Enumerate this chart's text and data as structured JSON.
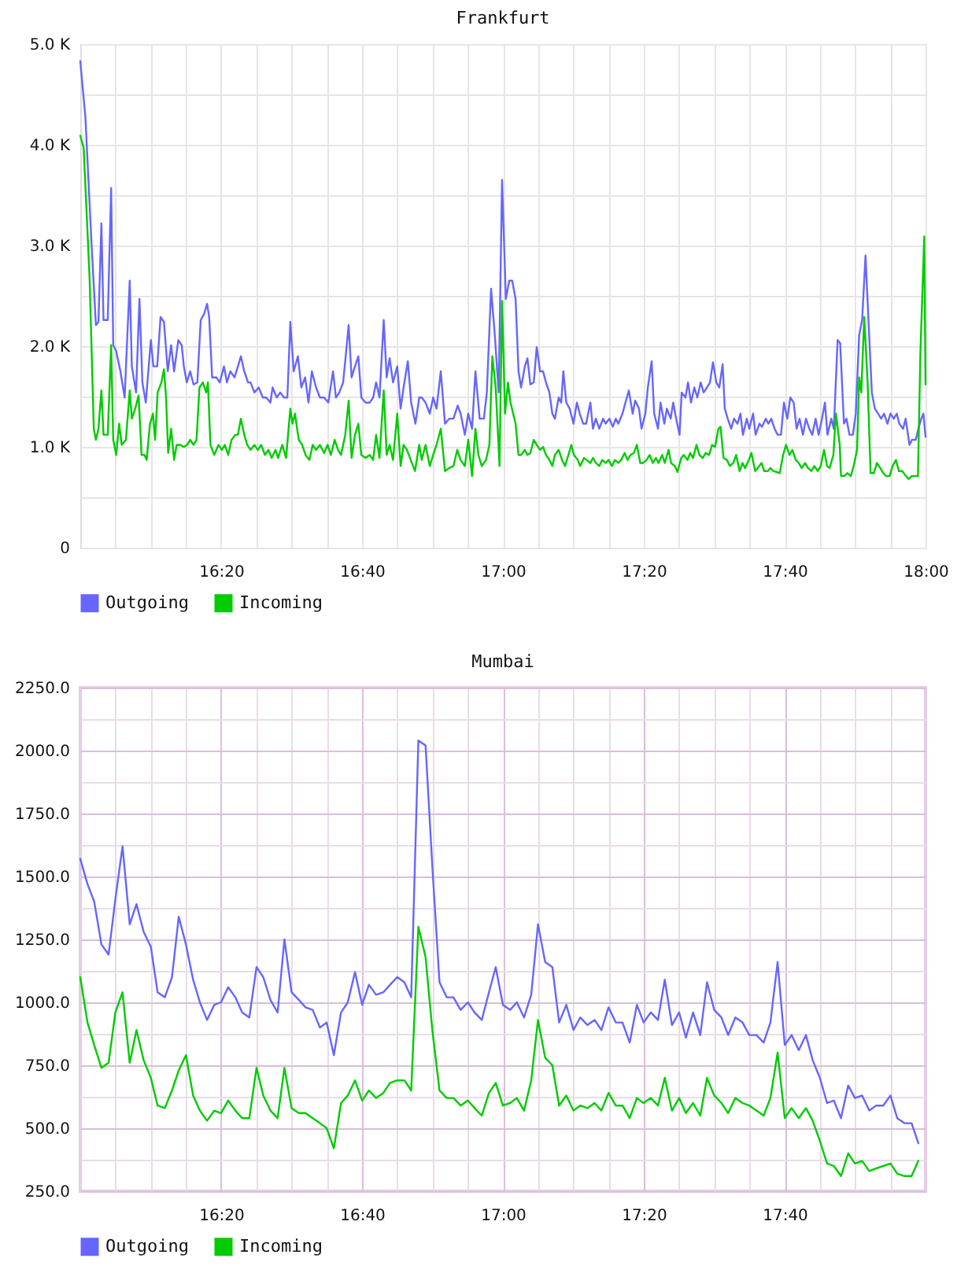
{
  "chart_data": [
    {
      "type": "line",
      "title": "Frankfurt",
      "xlim": [
        16,
        18
      ],
      "xticks": [
        {
          "value": 16.0833,
          "label": null
        },
        {
          "value": 16.1667,
          "label": null
        },
        {
          "value": 16.25,
          "label": null
        },
        {
          "value": 16.3333,
          "label": "16:20"
        },
        {
          "value": 16.4167,
          "label": null
        },
        {
          "value": 16.5,
          "label": null
        },
        {
          "value": 16.5833,
          "label": null
        },
        {
          "value": 16.6667,
          "label": "16:40"
        },
        {
          "value": 16.75,
          "label": null
        },
        {
          "value": 16.8333,
          "label": null
        },
        {
          "value": 16.9167,
          "label": null
        },
        {
          "value": 17,
          "label": "17:00"
        },
        {
          "value": 17.0833,
          "label": null
        },
        {
          "value": 17.1667,
          "label": null
        },
        {
          "value": 17.25,
          "label": null
        },
        {
          "value": 17.3333,
          "label": "17:20"
        },
        {
          "value": 17.4167,
          "label": null
        },
        {
          "value": 17.5,
          "label": null
        },
        {
          "value": 17.5833,
          "label": null
        },
        {
          "value": 17.6667,
          "label": "17:40"
        },
        {
          "value": 17.75,
          "label": null
        },
        {
          "value": 17.8333,
          "label": null
        },
        {
          "value": 17.9167,
          "label": null
        },
        {
          "value": 18,
          "label": "18:00"
        }
      ],
      "ylim": [
        0,
        5000
      ],
      "yticks": [
        0,
        {
          "value": 500,
          "label": null
        },
        {
          "value": 1000,
          "label": "1.0 K"
        },
        {
          "value": 1500,
          "label": null
        },
        {
          "value": 2000,
          "label": "2.0 K"
        },
        {
          "value": 2500,
          "label": null
        },
        {
          "value": 3000,
          "label": "3.0 K"
        },
        {
          "value": 3500,
          "label": null
        },
        {
          "value": 4000,
          "label": "4.0 K"
        },
        {
          "value": 4500,
          "label": null
        },
        {
          "value": 5000,
          "label": "5.0 K"
        }
      ],
      "grid": true,
      "legend": "bottom",
      "series": [
        {
          "name": "Outgoing",
          "color": "#6666ff",
          "x": [
            16.0,
            16.012,
            16.027,
            16.037,
            16.043,
            16.05,
            16.055,
            16.065,
            16.073,
            16.078,
            16.085,
            16.095,
            16.105,
            16.117,
            16.122,
            16.132,
            16.14,
            16.147,
            16.155,
            16.167,
            16.173,
            16.182,
            16.19,
            16.198,
            16.207,
            16.215,
            16.222,
            16.232,
            16.24,
            16.245,
            16.252,
            16.26,
            16.268,
            16.277,
            16.285,
            16.293,
            16.3,
            16.305,
            16.312,
            16.322,
            16.33,
            16.34,
            16.347,
            16.355,
            16.365,
            16.373,
            16.38,
            16.388,
            16.397,
            16.403,
            16.412,
            16.422,
            16.432,
            16.44,
            16.45,
            16.455,
            16.465,
            16.473,
            16.482,
            16.49,
            16.497,
            16.505,
            16.515,
            16.523,
            16.532,
            16.54,
            16.548,
            16.558,
            16.567,
            16.577,
            16.587,
            16.598,
            16.605,
            16.613,
            16.622,
            16.628,
            16.635,
            16.642,
            16.65,
            16.658,
            16.665,
            16.675,
            16.685,
            16.693,
            16.7,
            16.708,
            16.718,
            16.725,
            16.732,
            16.74,
            16.75,
            16.758,
            16.765,
            16.775,
            16.783,
            16.793,
            16.802,
            16.808,
            16.817,
            16.827,
            16.835,
            16.843,
            16.853,
            16.863,
            16.873,
            16.883,
            16.893,
            16.9,
            16.91,
            16.918,
            16.927,
            16.935,
            16.945,
            16.955,
            16.962,
            16.972,
            16.98,
            16.99,
            16.998,
            17.007,
            17.015,
            17.022,
            17.03,
            17.037,
            17.043,
            17.052,
            17.058,
            17.065,
            17.073,
            17.08,
            17.088,
            17.095,
            17.102,
            17.11,
            17.117,
            17.123,
            17.132,
            17.138,
            17.143,
            17.15,
            17.158,
            17.167,
            17.175,
            17.182,
            17.19,
            17.197,
            17.207,
            17.213,
            17.22,
            17.228,
            17.237,
            17.243,
            17.252,
            17.26,
            17.267,
            17.273,
            17.283,
            17.29,
            17.298,
            17.307,
            17.313,
            17.322,
            17.328,
            17.337,
            17.343,
            17.352,
            17.358,
            17.367,
            17.373,
            17.382,
            17.388,
            17.397,
            17.403,
            17.41,
            17.418,
            17.423,
            17.432,
            17.438,
            17.445,
            17.453,
            17.46,
            17.468,
            17.475,
            17.483,
            17.49,
            17.497,
            17.505,
            17.512,
            17.52,
            17.525,
            17.532,
            17.54,
            17.547,
            17.555,
            17.562,
            17.568,
            17.577,
            17.583,
            17.592,
            17.598,
            17.607,
            17.613,
            17.622,
            17.628,
            17.635,
            17.643,
            17.65,
            17.658,
            17.665,
            17.673,
            17.68,
            17.688,
            17.695,
            17.702,
            17.71,
            17.717,
            17.725,
            17.732,
            17.74,
            17.747,
            17.755,
            17.762,
            17.768,
            17.777,
            17.783,
            17.792,
            17.798,
            17.807,
            17.813,
            17.82,
            17.828,
            17.835,
            17.843,
            17.85,
            17.858,
            17.865,
            17.873,
            17.88,
            17.888,
            17.895,
            17.902,
            17.91,
            17.917,
            17.925,
            17.932,
            17.938,
            17.947,
            17.953,
            17.962,
            17.968,
            17.977,
            17.983,
            17.99,
            17.995,
            18.0
          ],
          "values": [
            4830,
            4280,
            2990,
            2210,
            2240,
            3220,
            2260,
            2260,
            3570,
            2010,
            1950,
            1750,
            1490,
            2650,
            1800,
            1540,
            2470,
            1640,
            1440,
            2060,
            1800,
            1800,
            2290,
            2240,
            1750,
            2010,
            1750,
            2060,
            2010,
            1800,
            1640,
            1750,
            1620,
            1640,
            2260,
            2320,
            2420,
            2290,
            1690,
            1690,
            1640,
            1800,
            1640,
            1750,
            1690,
            1800,
            1900,
            1750,
            1640,
            1640,
            1540,
            1590,
            1490,
            1490,
            1440,
            1590,
            1490,
            1540,
            1490,
            1490,
            2240,
            1750,
            1900,
            1590,
            1690,
            1440,
            1750,
            1590,
            1490,
            1490,
            1440,
            1750,
            1490,
            1540,
            1640,
            1900,
            2210,
            1690,
            1800,
            1900,
            1490,
            1440,
            1440,
            1490,
            1640,
            1490,
            2260,
            1690,
            1880,
            1640,
            1800,
            1380,
            1590,
            1850,
            1440,
            1230,
            1490,
            1490,
            1440,
            1330,
            1490,
            1380,
            1750,
            1230,
            1280,
            1280,
            1410,
            1330,
            1120,
            1330,
            1180,
            1750,
            1280,
            1280,
            1540,
            2570,
            2160,
            1540,
            3650,
            2470,
            2650,
            2650,
            2470,
            1750,
            1590,
            1800,
            1880,
            1620,
            1640,
            1990,
            1750,
            1750,
            1640,
            1540,
            1330,
            1280,
            1490,
            1440,
            1750,
            1440,
            1380,
            1230,
            1440,
            1330,
            1230,
            1230,
            1440,
            1180,
            1280,
            1180,
            1280,
            1230,
            1280,
            1200,
            1280,
            1230,
            1330,
            1440,
            1560,
            1330,
            1460,
            1380,
            1180,
            1330,
            1590,
            1850,
            1330,
            1180,
            1440,
            1230,
            1380,
            1280,
            1440,
            1280,
            1120,
            1540,
            1490,
            1640,
            1440,
            1590,
            1490,
            1640,
            1540,
            1590,
            1640,
            1840,
            1640,
            1590,
            1820,
            1380,
            1280,
            1180,
            1280,
            1230,
            1330,
            1120,
            1280,
            1180,
            1330,
            1120,
            1230,
            1200,
            1280,
            1230,
            1280,
            1180,
            1120,
            1120,
            1440,
            1280,
            1490,
            1440,
            1180,
            1280,
            1120,
            1280,
            1180,
            1120,
            1280,
            1120,
            1280,
            1440,
            1120,
            1280,
            1180,
            2060,
            2030,
            1230,
            1280,
            1120,
            1120,
            1330,
            2110,
            2260,
            2900,
            2260,
            1540,
            1380,
            1330,
            1280,
            1330,
            1230,
            1330,
            1280,
            1330,
            1230,
            1180,
            1280,
            1020,
            1070,
            1070,
            1180,
            1280,
            1330,
            1100
          ]
        },
        {
          "name": "Incoming",
          "color": "#00cc00",
          "x": [
            16.0,
            16.008,
            16.022,
            16.032,
            16.037,
            16.043,
            16.05,
            16.055,
            16.065,
            16.073,
            16.078,
            16.085,
            16.092,
            16.098,
            16.108,
            16.117,
            16.122,
            16.13,
            16.138,
            16.145,
            16.152,
            16.157,
            16.165,
            16.172,
            16.177,
            16.183,
            16.192,
            16.198,
            16.203,
            16.208,
            16.215,
            16.222,
            16.228,
            16.237,
            16.245,
            16.253,
            16.26,
            16.268,
            16.275,
            16.282,
            16.29,
            16.298,
            16.302,
            16.308,
            16.317,
            16.327,
            16.335,
            16.342,
            16.35,
            16.358,
            16.367,
            16.373,
            16.38,
            16.388,
            16.395,
            16.403,
            16.412,
            16.42,
            16.428,
            16.437,
            16.445,
            16.453,
            16.462,
            16.468,
            16.478,
            16.487,
            16.497,
            16.502,
            16.508,
            16.517,
            16.525,
            16.533,
            16.542,
            16.55,
            16.558,
            16.567,
            16.577,
            16.585,
            16.593,
            16.602,
            16.61,
            16.617,
            16.627,
            16.635,
            16.642,
            16.65,
            16.658,
            16.665,
            16.675,
            16.685,
            16.693,
            16.7,
            16.708,
            16.718,
            16.725,
            16.732,
            16.74,
            16.75,
            16.758,
            16.765,
            16.773,
            16.782,
            16.792,
            16.802,
            16.808,
            16.817,
            16.827,
            16.835,
            16.843,
            16.853,
            16.863,
            16.873,
            16.883,
            16.892,
            16.9,
            16.91,
            16.918,
            16.927,
            16.935,
            16.942,
            16.95,
            16.96,
            16.968,
            16.975,
            16.983,
            16.992,
            16.998,
            17.005,
            17.012,
            17.018,
            17.03,
            17.037,
            17.043,
            17.052,
            17.058,
            17.065,
            17.073,
            17.08,
            17.088,
            17.095,
            17.102,
            17.11,
            17.117,
            17.123,
            17.132,
            17.14,
            17.147,
            17.155,
            17.162,
            17.168,
            17.177,
            17.183,
            17.192,
            17.198,
            17.207,
            17.213,
            17.22,
            17.228,
            17.235,
            17.243,
            17.25,
            17.258,
            17.265,
            17.273,
            17.28,
            17.288,
            17.295,
            17.302,
            17.31,
            17.317,
            17.325,
            17.332,
            17.34,
            17.347,
            17.355,
            17.362,
            17.368,
            17.377,
            17.383,
            17.392,
            17.398,
            17.407,
            17.413,
            17.422,
            17.428,
            17.437,
            17.443,
            17.45,
            17.458,
            17.465,
            17.473,
            17.48,
            17.488,
            17.495,
            17.502,
            17.51,
            17.515,
            17.522,
            17.53,
            17.537,
            17.545,
            17.552,
            17.56,
            17.567,
            17.573,
            17.582,
            17.588,
            17.597,
            17.603,
            17.612,
            17.618,
            17.627,
            17.633,
            17.64,
            17.648,
            17.655,
            17.663,
            17.67,
            17.678,
            17.685,
            17.693,
            17.7,
            17.707,
            17.715,
            17.722,
            17.73,
            17.737,
            17.745,
            17.752,
            17.76,
            17.767,
            17.773,
            17.782,
            17.788,
            17.797,
            17.8,
            17.808,
            17.815,
            17.823,
            17.83,
            17.838,
            17.843,
            17.848,
            17.855,
            17.863,
            17.87,
            17.878,
            17.885,
            17.893,
            17.9,
            17.907,
            17.915,
            17.922,
            17.93,
            17.937,
            17.945,
            17.952,
            17.96,
            17.967,
            17.973,
            17.982,
            17.988,
            17.997,
            18.0
          ],
          "values": [
            4090,
            3970,
            2680,
            1180,
            1070,
            1180,
            1560,
            1120,
            1120,
            2010,
            1070,
            920,
            1230,
            1020,
            1070,
            1560,
            1280,
            1380,
            1510,
            920,
            920,
            870,
            1230,
            1330,
            1070,
            1540,
            1640,
            1770,
            1490,
            940,
            1180,
            870,
            1020,
            1020,
            1000,
            1020,
            1070,
            1020,
            1070,
            1590,
            1640,
            1540,
            1640,
            1020,
            920,
            1020,
            970,
            1020,
            920,
            1070,
            1120,
            1120,
            1280,
            1120,
            1020,
            970,
            1020,
            970,
            1020,
            920,
            970,
            890,
            970,
            890,
            1020,
            890,
            1380,
            1230,
            1330,
            1070,
            1020,
            920,
            870,
            1020,
            970,
            1020,
            940,
            1020,
            920,
            1070,
            970,
            920,
            1120,
            1460,
            890,
            1120,
            1230,
            920,
            890,
            920,
            870,
            1120,
            890,
            1560,
            920,
            1020,
            870,
            1330,
            810,
            1020,
            970,
            870,
            760,
            1020,
            870,
            1020,
            810,
            920,
            1020,
            1180,
            760,
            790,
            810,
            970,
            870,
            810,
            1070,
            710,
            1180,
            920,
            810,
            870,
            1020,
            1900,
            1590,
            810,
            2450,
            1330,
            1640,
            1440,
            1230,
            920,
            920,
            970,
            920,
            940,
            1070,
            1020,
            970,
            1000,
            920,
            870,
            810,
            920,
            970,
            870,
            810,
            920,
            1020,
            920,
            870,
            810,
            890,
            870,
            840,
            890,
            840,
            810,
            870,
            840,
            870,
            810,
            870,
            840,
            870,
            940,
            870,
            920,
            940,
            1020,
            840,
            840,
            870,
            920,
            840,
            890,
            840,
            920,
            840,
            970,
            840,
            810,
            750,
            890,
            920,
            870,
            940,
            890,
            1020,
            920,
            890,
            940,
            920,
            1020,
            1000,
            1180,
            1200,
            890,
            870,
            810,
            840,
            920,
            760,
            840,
            790,
            870,
            940,
            760,
            790,
            840,
            760,
            760,
            790,
            760,
            750,
            740,
            920,
            1020,
            920,
            970,
            870,
            840,
            790,
            840,
            790,
            760,
            810,
            760,
            810,
            970,
            810,
            790,
            920,
            1330,
            1020,
            710,
            710,
            740,
            710,
            810,
            970,
            1690,
            1540,
            2290,
            1640,
            740,
            740,
            840,
            790,
            740,
            710,
            710,
            810,
            870,
            760,
            760,
            720,
            680,
            710,
            710,
            710,
            1950,
            3090,
            1620
          ]
        }
      ]
    },
    {
      "type": "line",
      "title": "Mumbai",
      "x": [
        16,
        16.017,
        16.033,
        16.05,
        16.067,
        16.083,
        16.1,
        16.117,
        16.133,
        16.15,
        16.167,
        16.183,
        16.2,
        16.217,
        16.233,
        16.25,
        16.267,
        16.283,
        16.3,
        16.317,
        16.333,
        16.35,
        16.367,
        16.383,
        16.4,
        16.417,
        16.433,
        16.45,
        16.467,
        16.483,
        16.5,
        16.517,
        16.533,
        16.55,
        16.567,
        16.583,
        16.6,
        16.617,
        16.633,
        16.65,
        16.667,
        16.683,
        16.7,
        16.717,
        16.733,
        16.75,
        16.767,
        16.783,
        16.8,
        16.817,
        16.833,
        16.85,
        16.867,
        16.883,
        16.9,
        16.917,
        16.933,
        16.95,
        16.967,
        16.983,
        17,
        17.017,
        17.033,
        17.05,
        17.067,
        17.083,
        17.1,
        17.117,
        17.133,
        17.15,
        17.167,
        17.183,
        17.2,
        17.217,
        17.233,
        17.25,
        17.267,
        17.283,
        17.3,
        17.317,
        17.333,
        17.35,
        17.367,
        17.383,
        17.4,
        17.417,
        17.433,
        17.45,
        17.467,
        17.483,
        17.5,
        17.517,
        17.533,
        17.55,
        17.567,
        17.583,
        17.6,
        17.617,
        17.633,
        17.65,
        17.667,
        17.683,
        17.7,
        17.717,
        17.733,
        17.75,
        17.767,
        17.783,
        17.8,
        17.817,
        17.833,
        17.85,
        17.867,
        17.883,
        17.9,
        17.917,
        17.933,
        17.95,
        17.967,
        17.983
      ],
      "xlim": [
        16,
        18
      ],
      "xticks": [
        {
          "value": 16.0833,
          "label": null
        },
        {
          "value": 16.1667,
          "label": null
        },
        {
          "value": 16.25,
          "label": null
        },
        {
          "value": 16.3333,
          "label": "16:20"
        },
        {
          "value": 16.4167,
          "label": null
        },
        {
          "value": 16.5,
          "label": null
        },
        {
          "value": 16.5833,
          "label": null
        },
        {
          "value": 16.6667,
          "label": "16:40"
        },
        {
          "value": 16.75,
          "label": null
        },
        {
          "value": 16.8333,
          "label": null
        },
        {
          "value": 16.9167,
          "label": null
        },
        {
          "value": 17,
          "label": "17:00"
        },
        {
          "value": 17.0833,
          "label": null
        },
        {
          "value": 17.1667,
          "label": null
        },
        {
          "value": 17.25,
          "label": null
        },
        {
          "value": 17.3333,
          "label": "17:20"
        },
        {
          "value": 17.4167,
          "label": null
        },
        {
          "value": 17.5,
          "label": null
        },
        {
          "value": 17.5833,
          "label": null
        },
        {
          "value": 17.6667,
          "label": "17:40"
        },
        {
          "value": 17.75,
          "label": null
        },
        {
          "value": 17.8333,
          "label": null
        },
        {
          "value": 17.9167,
          "label": null
        }
      ],
      "ylim": [
        250,
        2250
      ],
      "yticks": [
        {
          "value": 250,
          "label": "250.0"
        },
        {
          "value": 375,
          "label": null
        },
        {
          "value": 500,
          "label": "500.0"
        },
        {
          "value": 625,
          "label": null
        },
        {
          "value": 750,
          "label": "750.0"
        },
        {
          "value": 875,
          "label": null
        },
        {
          "value": 1000,
          "label": "1000.0"
        },
        {
          "value": 1125,
          "label": null
        },
        {
          "value": 1250,
          "label": "1250.0"
        },
        {
          "value": 1375,
          "label": null
        },
        {
          "value": 1500,
          "label": "1500.0"
        },
        {
          "value": 1625,
          "label": null
        },
        {
          "value": 1750,
          "label": "1750.0"
        },
        {
          "value": 1875,
          "label": null
        },
        {
          "value": 2000,
          "label": "2000.0"
        },
        {
          "value": 2125,
          "label": null
        },
        {
          "value": 2250,
          "label": "2250.0"
        }
      ],
      "grid": true,
      "legend": "bottom",
      "series": [
        {
          "name": "Outgoing",
          "color": "#6666ff",
          "values": [
            1570,
            1470,
            1400,
            1230,
            1190,
            1410,
            1620,
            1310,
            1390,
            1280,
            1220,
            1040,
            1020,
            1100,
            1340,
            1230,
            1090,
            1000,
            930,
            990,
            1000,
            1060,
            1020,
            960,
            940,
            1140,
            1100,
            1010,
            960,
            1250,
            1040,
            1010,
            980,
            970,
            900,
            920,
            790,
            960,
            1000,
            1120,
            990,
            1070,
            1030,
            1040,
            1070,
            1100,
            1080,
            1020,
            2040,
            2020,
            1540,
            1080,
            1020,
            1020,
            970,
            1000,
            960,
            930,
            1040,
            1140,
            990,
            970,
            1000,
            940,
            1030,
            1310,
            1160,
            1140,
            920,
            990,
            890,
            940,
            910,
            930,
            890,
            980,
            920,
            920,
            840,
            990,
            920,
            960,
            930,
            1090,
            910,
            960,
            860,
            960,
            870,
            1080,
            970,
            940,
            870,
            940,
            920,
            870,
            870,
            840,
            920,
            1160,
            830,
            870,
            810,
            870,
            770,
            700,
            600,
            610,
            540,
            670,
            620,
            630,
            570,
            590,
            590,
            630,
            540,
            520,
            520,
            440
          ]
        },
        {
          "name": "Incoming",
          "color": "#00cc00",
          "values": [
            1100,
            920,
            830,
            740,
            760,
            960,
            1040,
            760,
            890,
            770,
            700,
            590,
            580,
            650,
            730,
            790,
            630,
            570,
            530,
            570,
            560,
            610,
            570,
            540,
            540,
            740,
            630,
            570,
            540,
            740,
            580,
            560,
            560,
            540,
            520,
            500,
            420,
            600,
            630,
            690,
            610,
            650,
            620,
            640,
            680,
            690,
            690,
            650,
            1300,
            1180,
            890,
            650,
            620,
            620,
            590,
            610,
            580,
            550,
            640,
            680,
            590,
            600,
            620,
            570,
            690,
            930,
            780,
            750,
            590,
            630,
            570,
            590,
            580,
            600,
            570,
            640,
            590,
            590,
            540,
            620,
            600,
            620,
            590,
            700,
            570,
            620,
            560,
            600,
            550,
            700,
            630,
            600,
            560,
            620,
            600,
            590,
            570,
            550,
            620,
            800,
            540,
            580,
            540,
            580,
            530,
            450,
            360,
            350,
            310,
            400,
            360,
            370,
            330,
            340,
            350,
            360,
            320,
            310,
            310,
            370
          ]
        }
      ]
    }
  ]
}
